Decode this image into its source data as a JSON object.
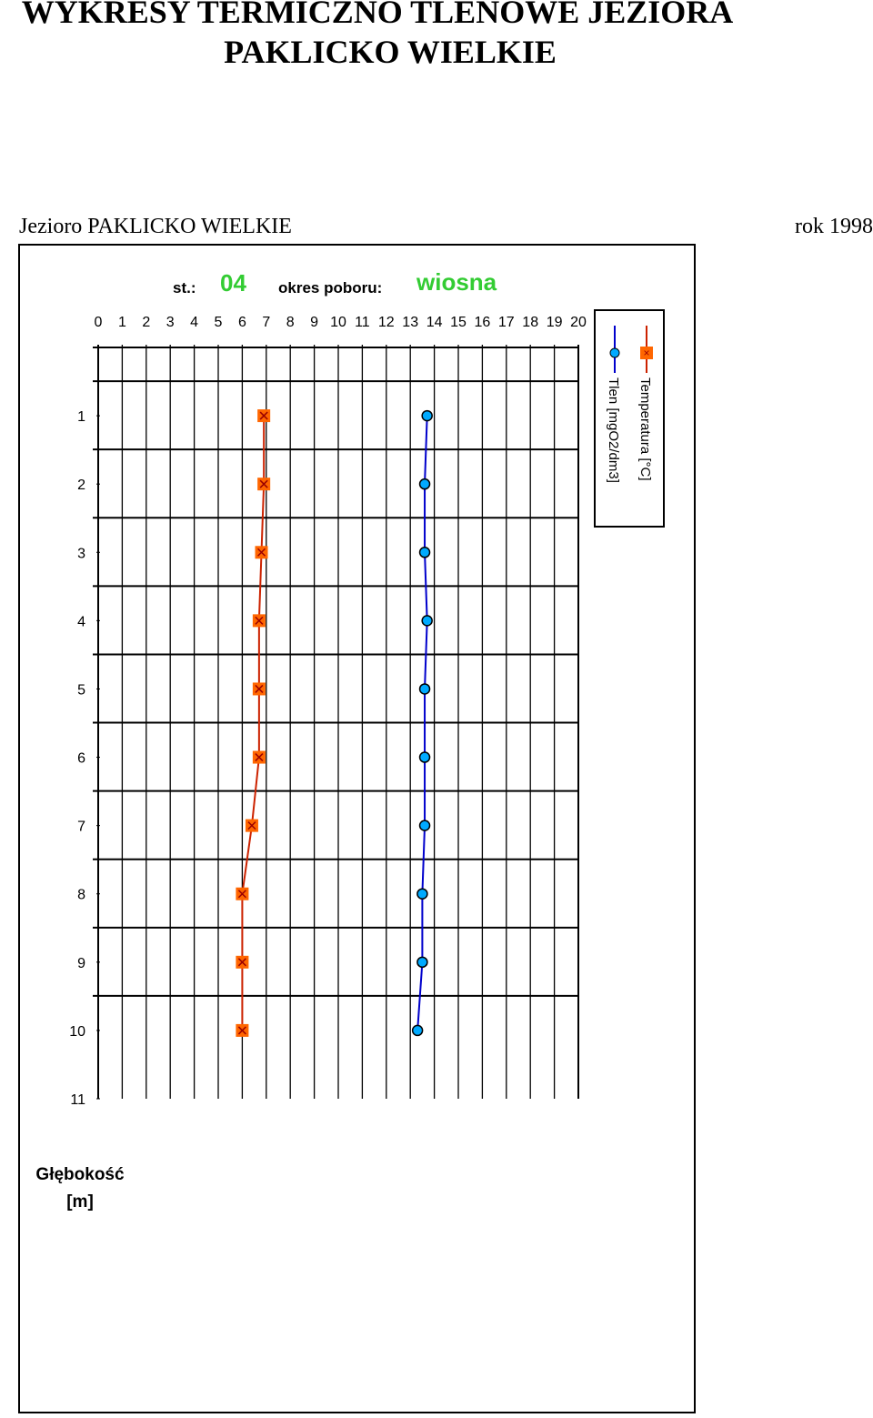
{
  "header": {
    "title_line1": "WYKRESY TERMICZNO TLENOWE JEZIORA",
    "title_line2": "PAKLICKO WIELKIE",
    "lake": "Jezioro PAKLICKO WIELKIE",
    "year": "rok 1998"
  },
  "colors": {
    "temperature_line": "#cc2200",
    "temperature_marker": "#ff6600",
    "oxygen_line": "#0000cc",
    "oxygen_marker": "#00aaff",
    "label_green": "#33cc33"
  },
  "chart_data": {
    "type": "line",
    "station_label": "st.:",
    "station": "04",
    "period_label": "okres poboru:",
    "period": "wiosna",
    "x_ticks": [
      "0",
      "1",
      "2",
      "3",
      "4",
      "5",
      "6",
      "7",
      "8",
      "9",
      "10",
      "11",
      "12",
      "13",
      "14",
      "15",
      "16",
      "17",
      "18",
      "19",
      "20"
    ],
    "xlim": [
      0,
      20
    ],
    "y_ticks": [
      "1",
      "2",
      "3",
      "4",
      "5",
      "6",
      "7",
      "8",
      "9",
      "10",
      "11"
    ],
    "ylim": [
      0,
      11
    ],
    "y_inverted": true,
    "ylabel_line1": "Głębokość",
    "ylabel_line2": "[m]",
    "grid": true,
    "legend_position": "right",
    "depth": [
      1,
      2,
      3,
      4,
      5,
      6,
      7,
      8,
      9,
      10
    ],
    "series": [
      {
        "name": "Temperatura [°C]",
        "values": [
          6.9,
          6.9,
          6.8,
          6.7,
          6.7,
          6.7,
          6.4,
          6.0,
          6.0,
          6.0
        ]
      },
      {
        "name": "Tlen [mgO2/dm3]",
        "values": [
          13.7,
          13.6,
          13.6,
          13.7,
          13.6,
          13.6,
          13.6,
          13.5,
          13.5,
          13.3
        ]
      }
    ]
  }
}
